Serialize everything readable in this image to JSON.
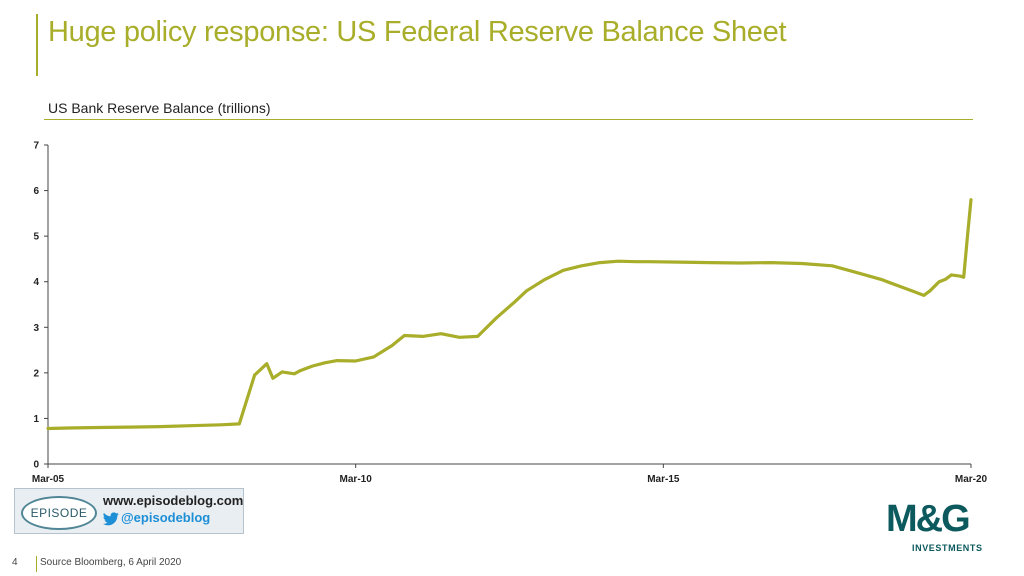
{
  "header": {
    "title": "Huge policy response: US Federal Reserve Balance Sheet",
    "subtitle": "US Bank Reserve Balance (trillions)"
  },
  "colors": {
    "accent": "#a8ad2a",
    "series_line": "#a8ad2a",
    "brand_teal": "#0d5a5e",
    "twitter_blue": "#1d8fd6"
  },
  "chart_data": {
    "type": "line",
    "title": "US Bank Reserve Balance (trillions)",
    "xlabel": "",
    "ylabel": "",
    "x_ticks": [
      "Mar-05",
      "Mar-10",
      "Mar-15",
      "Mar-20"
    ],
    "y_ticks": [
      "0",
      "1",
      "2",
      "3",
      "4",
      "5",
      "6",
      "7"
    ],
    "xlim": [
      2005.17,
      2020.27
    ],
    "ylim": [
      0,
      7
    ],
    "grid": false,
    "legend": "none",
    "series": [
      {
        "x": [
          2005.17,
          2005.5,
          2006.0,
          2006.5,
          2007.0,
          2007.5,
          2008.0,
          2008.3,
          2008.55,
          2008.75,
          2008.85,
          2009.0,
          2009.2,
          2009.3,
          2009.4,
          2009.5,
          2009.7,
          2009.9,
          2010.2,
          2010.5,
          2010.8,
          2011.0,
          2011.3,
          2011.6,
          2011.9,
          2012.2,
          2012.5,
          2012.8,
          2013.0,
          2013.3,
          2013.6,
          2013.9,
          2014.2,
          2014.5,
          2014.8,
          2015.0,
          2015.5,
          2016.0,
          2016.5,
          2017.0,
          2017.5,
          2018.0,
          2018.4,
          2018.8,
          2019.1,
          2019.3,
          2019.5,
          2019.6,
          2019.75,
          2019.85,
          2019.95,
          2020.1,
          2020.15,
          2020.22,
          2020.27
        ],
        "y": [
          0.78,
          0.79,
          0.8,
          0.81,
          0.82,
          0.84,
          0.86,
          0.88,
          1.95,
          2.2,
          1.88,
          2.02,
          1.98,
          2.05,
          2.1,
          2.15,
          2.22,
          2.27,
          2.26,
          2.35,
          2.6,
          2.82,
          2.8,
          2.86,
          2.78,
          2.8,
          3.2,
          3.55,
          3.8,
          4.05,
          4.25,
          4.35,
          4.42,
          4.45,
          4.44,
          4.44,
          4.43,
          4.42,
          4.41,
          4.42,
          4.4,
          4.35,
          4.2,
          4.05,
          3.9,
          3.8,
          3.7,
          3.8,
          4.0,
          4.05,
          4.15,
          4.12,
          4.1,
          5.1,
          5.8
        ]
      }
    ]
  },
  "branding": {
    "blog_logo_text": "EPISODE",
    "blog_url": "www.episodeblog.com",
    "blog_handle": "@episodeblog",
    "company_wordmark": "M&G",
    "company_sub": "INVESTMENTS"
  },
  "footer": {
    "page_number": "4",
    "source": "Source Bloomberg, 6 April 2020"
  },
  "icons": {
    "twitter": "twitter-bird-icon"
  }
}
